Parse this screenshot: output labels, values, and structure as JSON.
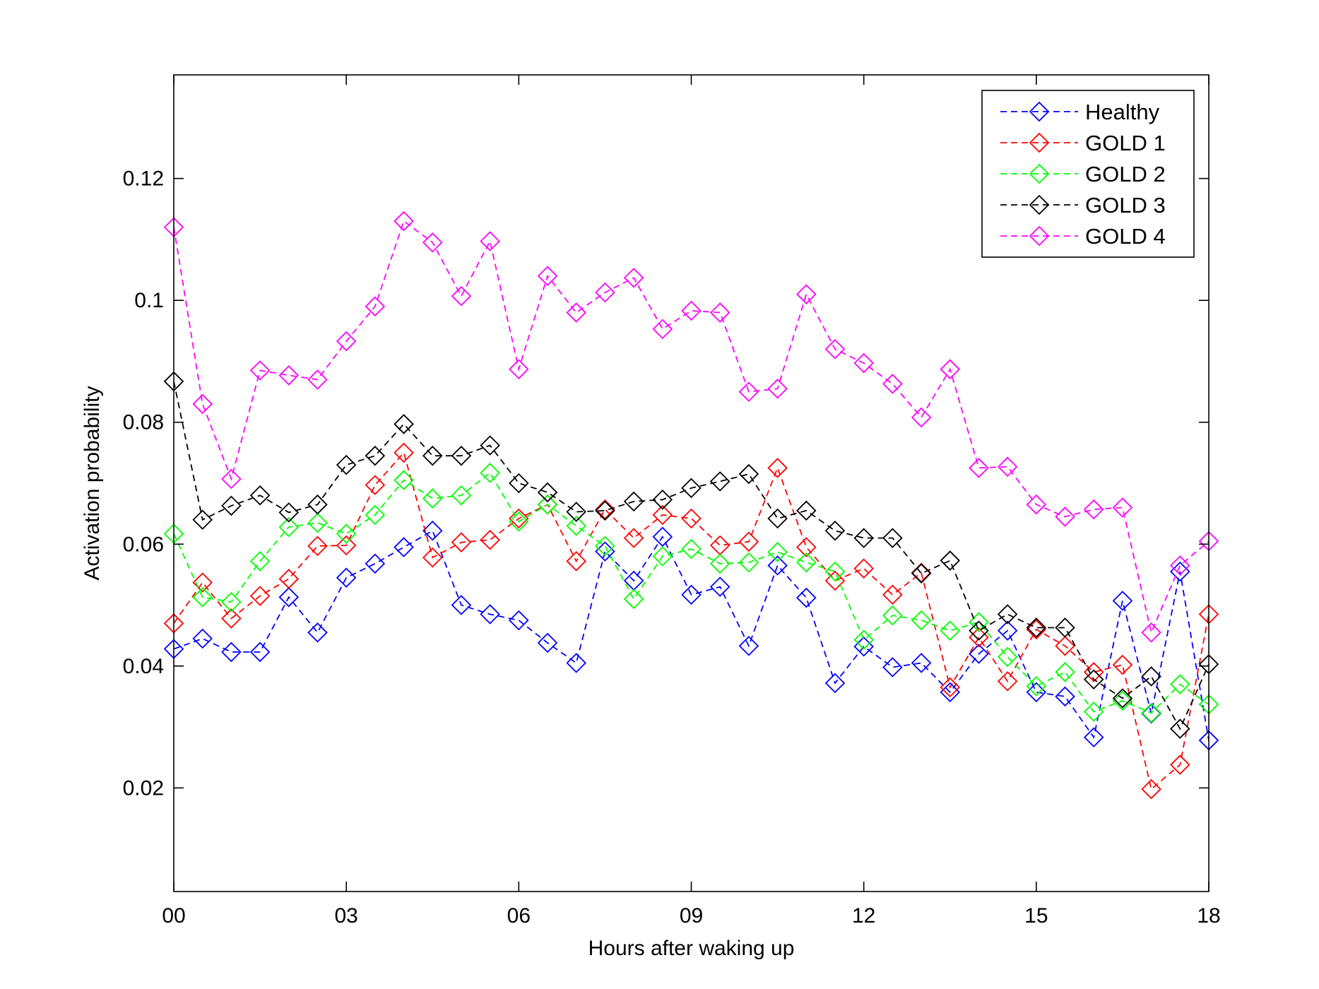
{
  "chart_data": {
    "type": "line",
    "xlabel": "Hours after waking up",
    "ylabel": "Activation probability",
    "xlim": [
      0,
      18
    ],
    "ylim": [
      0.003,
      0.137
    ],
    "xticks": [
      0,
      3,
      6,
      9,
      12,
      15,
      18
    ],
    "xtick_labels": [
      "00",
      "03",
      "06",
      "09",
      "12",
      "15",
      "18"
    ],
    "yticks": [
      0.02,
      0.04,
      0.06,
      0.08,
      0.1,
      0.12
    ],
    "ytick_labels": [
      "0.02",
      "0.04",
      "0.06",
      "0.08",
      "0.1",
      "0.12"
    ],
    "grid": false,
    "legend_position": "top-right",
    "marker": "diamond",
    "line_style": "dashed",
    "x": [
      0,
      0.5,
      1,
      1.5,
      2,
      2.5,
      3,
      3.5,
      4,
      4.5,
      5,
      5.5,
      6,
      6.5,
      7,
      7.5,
      8,
      8.5,
      9,
      9.5,
      10,
      10.5,
      11,
      11.5,
      12,
      12.5,
      13,
      13.5,
      14,
      14.5,
      15,
      15.5,
      16,
      16.5,
      17,
      17.5,
      18
    ],
    "series": [
      {
        "name": "Healthy",
        "color": "#0000ff",
        "values": [
          0.0428,
          0.0445,
          0.0423,
          0.0423,
          0.0513,
          0.0455,
          0.0545,
          0.0568,
          0.0595,
          0.0622,
          0.05,
          0.0485,
          0.0475,
          0.0438,
          0.0405,
          0.0588,
          0.054,
          0.0612,
          0.0517,
          0.053,
          0.0433,
          0.0565,
          0.0512,
          0.0372,
          0.0432,
          0.0398,
          0.0405,
          0.0357,
          0.042,
          0.0458,
          0.0357,
          0.035,
          0.0283,
          0.0507,
          0.0322,
          0.0555,
          0.0278
        ]
      },
      {
        "name": "GOLD 1",
        "color": "#ff0000",
        "values": [
          0.047,
          0.0537,
          0.0478,
          0.0515,
          0.0543,
          0.0597,
          0.0598,
          0.0697,
          0.075,
          0.0578,
          0.0603,
          0.0607,
          0.0642,
          0.0665,
          0.0572,
          0.0657,
          0.061,
          0.0648,
          0.0642,
          0.0598,
          0.0604,
          0.0725,
          0.0595,
          0.054,
          0.056,
          0.0517,
          0.0553,
          0.0365,
          0.0447,
          0.0375,
          0.046,
          0.0433,
          0.039,
          0.0402,
          0.0198,
          0.0238,
          0.0485
        ]
      },
      {
        "name": "GOLD 2",
        "color": "#00ff00",
        "values": [
          0.0617,
          0.0513,
          0.0505,
          0.0572,
          0.0628,
          0.0635,
          0.0617,
          0.0648,
          0.0705,
          0.0675,
          0.068,
          0.0717,
          0.0637,
          0.0665,
          0.063,
          0.0597,
          0.051,
          0.058,
          0.0592,
          0.0568,
          0.057,
          0.0587,
          0.057,
          0.0555,
          0.0443,
          0.0483,
          0.0475,
          0.0458,
          0.0472,
          0.0415,
          0.0367,
          0.039,
          0.0325,
          0.0343,
          0.0323,
          0.037,
          0.0337
        ]
      },
      {
        "name": "GOLD 3",
        "color": "#000000",
        "values": [
          0.0867,
          0.064,
          0.0663,
          0.068,
          0.0652,
          0.0665,
          0.073,
          0.0745,
          0.0797,
          0.0745,
          0.0745,
          0.0762,
          0.07,
          0.0685,
          0.0653,
          0.0655,
          0.067,
          0.0673,
          0.0692,
          0.0703,
          0.0715,
          0.0642,
          0.0655,
          0.0622,
          0.061,
          0.061,
          0.0552,
          0.0573,
          0.0458,
          0.0485,
          0.0463,
          0.0463,
          0.0378,
          0.0347,
          0.0383,
          0.0297,
          0.0403
        ]
      },
      {
        "name": "GOLD 4",
        "color": "#ff00ff",
        "values": [
          0.112,
          0.083,
          0.0707,
          0.0885,
          0.0877,
          0.087,
          0.0933,
          0.099,
          0.113,
          0.1095,
          0.1007,
          0.1097,
          0.0887,
          0.104,
          0.098,
          0.1013,
          0.1037,
          0.0953,
          0.0983,
          0.098,
          0.085,
          0.0855,
          0.101,
          0.092,
          0.0897,
          0.0863,
          0.0808,
          0.0887,
          0.0725,
          0.0727,
          0.0665,
          0.0645,
          0.0657,
          0.066,
          0.0455,
          0.0565,
          0.0605
        ]
      }
    ]
  }
}
